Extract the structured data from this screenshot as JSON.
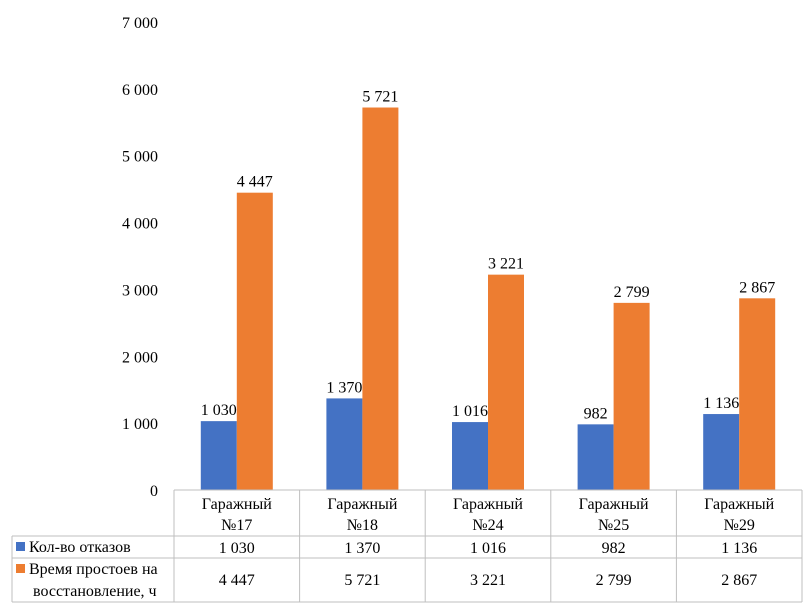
{
  "chart_data": {
    "type": "bar",
    "categories": [
      [
        "Гаражный",
        "№17"
      ],
      [
        "Гаражный",
        "№18"
      ],
      [
        "Гаражный",
        "№24"
      ],
      [
        "Гаражный",
        "№25"
      ],
      [
        "Гаражный",
        "№29"
      ]
    ],
    "series": [
      {
        "name": "Кол-во отказов",
        "color": "#4472c4",
        "values": [
          1030,
          1370,
          1016,
          982,
          1136
        ],
        "labels": [
          "1 030",
          "1 370",
          "1 016",
          "982",
          "1 136"
        ]
      },
      {
        "name_lines": [
          "Время простоев на",
          "восстановление, ч"
        ],
        "color": "#ed7d31",
        "values": [
          4447,
          5721,
          3221,
          2799,
          2867
        ],
        "labels": [
          "4 447",
          "5 721",
          "3 221",
          "2 799",
          "2 867"
        ]
      }
    ],
    "ylim": [
      0,
      7000
    ],
    "yticks": [
      0,
      1000,
      2000,
      3000,
      4000,
      5000,
      6000,
      7000
    ],
    "ytick_labels": [
      "0",
      "1 000",
      "2 000",
      "3 000",
      "4 000",
      "5 000",
      "6 000",
      "7 000"
    ],
    "grid": false,
    "data_table": true
  }
}
